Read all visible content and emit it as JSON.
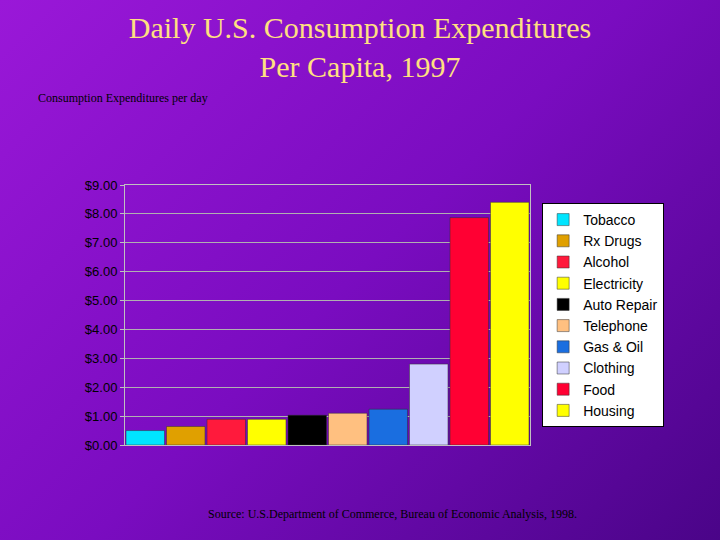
{
  "chart_data": {
    "type": "bar",
    "title": "Daily U.S. Consumption Expenditures\nPer Capita, 1997",
    "subtitle": "Consumption Expenditures per day",
    "annotations": [
      "Source: U.S.Department of Commerce, Bureau of Economic Analysis, 1998."
    ],
    "categories": [
      "Tobacco",
      "Rx Drugs",
      "Alcohol",
      "Electricity",
      "Auto Repair",
      "Telephone",
      "Gas & Oil",
      "Clothing",
      "Food",
      "Housing"
    ],
    "values": [
      0.5,
      0.64,
      0.89,
      0.89,
      1.03,
      1.1,
      1.24,
      2.8,
      7.87,
      8.4
    ],
    "colors": [
      "#00e5ff",
      "#e0a000",
      "#ff1a3c",
      "#ffff00",
      "#000000",
      "#ffc080",
      "#1a6ee0",
      "#d0d0ff",
      "#ff0033",
      "#ffff00"
    ],
    "ylim": [
      0,
      9
    ],
    "yticks": [
      {
        "value": 0,
        "label": "$0.00"
      },
      {
        "value": 1,
        "label": "$1.00"
      },
      {
        "value": 2,
        "label": "$2.00"
      },
      {
        "value": 3,
        "label": "$3.00"
      },
      {
        "value": 4,
        "label": "$4.00"
      },
      {
        "value": 5,
        "label": "$5.00"
      },
      {
        "value": 6,
        "label": "$6.00"
      },
      {
        "value": 7,
        "label": "$7.00"
      },
      {
        "value": 8,
        "label": "$8.00"
      },
      {
        "value": 9,
        "label": "$9.00"
      }
    ],
    "grid": true,
    "legend": "right",
    "tick_labels": "y"
  }
}
